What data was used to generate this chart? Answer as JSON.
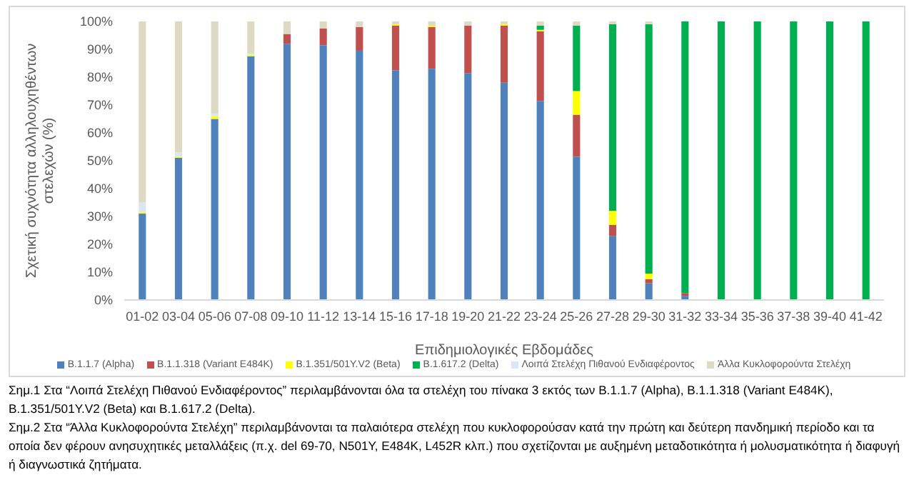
{
  "chart_data": {
    "type": "bar",
    "stacked": true,
    "xlabel": "Επιδημιολογικές Εβδομάδες",
    "ylabel": "Σχετική συχνότητα αλληλουχηθέντων στελεχών (%)",
    "categories": [
      "01-02",
      "03-04",
      "05-06",
      "07-08",
      "09-10",
      "11-12",
      "13-14",
      "15-16",
      "17-18",
      "19-20",
      "21-22",
      "23-24",
      "25-26",
      "27-28",
      "29-30",
      "31-32",
      "33-34",
      "35-36",
      "37-38",
      "39-40",
      "41-42"
    ],
    "series": [
      {
        "name": "B.1.1.7 (Alpha)",
        "color": "#4f81bd",
        "values": [
          31,
          51,
          65,
          87.5,
          92,
          91.5,
          89.5,
          82.5,
          83,
          81.5,
          78,
          71.5,
          51.5,
          23,
          6,
          1.5,
          0,
          0,
          0,
          0,
          0
        ]
      },
      {
        "name": "B.1.1.318 (Variant E484K)",
        "color": "#c0504d",
        "values": [
          0,
          0,
          0,
          0,
          3.5,
          6,
          8.5,
          16,
          15,
          17,
          20.5,
          25,
          15,
          4,
          1.5,
          1,
          0,
          0,
          0,
          0,
          0
        ]
      },
      {
        "name": "B.1.351/501Y.V2 (Beta)",
        "color": "#ffff00",
        "values": [
          0.5,
          0.5,
          1,
          0.5,
          0,
          0,
          0,
          0.5,
          0.5,
          0,
          0.5,
          0.5,
          8.5,
          5,
          2,
          0,
          0,
          0,
          0,
          0,
          0
        ]
      },
      {
        "name": "B.1.617.2 (Delta)",
        "color": "#00b050",
        "values": [
          0,
          0,
          0,
          0,
          0,
          0,
          0,
          0,
          0,
          0,
          0,
          1.5,
          23.5,
          67,
          89.5,
          97.5,
          100,
          100,
          100,
          100,
          100
        ]
      },
      {
        "name": "Λοιπά Στελέχη Πιθανού Ενδιαφέροντος",
        "color": "#dce6f2",
        "values": [
          3.5,
          1.5,
          1,
          0.5,
          0,
          0,
          null,
          0,
          0,
          0,
          0,
          0,
          0,
          0,
          0,
          0,
          0,
          0,
          0,
          0,
          0
        ]
      },
      {
        "name": "Άλλα Κυκλοφορούντα Στελέχη",
        "color": "#ddd9c3",
        "values": [
          65,
          47,
          33,
          11.5,
          4.5,
          2.5,
          2,
          1,
          1.5,
          1.5,
          1,
          1.5,
          1.5,
          1,
          1,
          0,
          0,
          0,
          0,
          0,
          0
        ]
      }
    ],
    "ylim": [
      0,
      100
    ],
    "yticks": [
      {
        "value": 0,
        "label": "0%"
      },
      {
        "value": 10,
        "label": "10%"
      },
      {
        "value": 20,
        "label": "20%"
      },
      {
        "value": 30,
        "label": "30%"
      },
      {
        "value": 40,
        "label": "40%"
      },
      {
        "value": 50,
        "label": "50%"
      },
      {
        "value": 60,
        "label": "60%"
      },
      {
        "value": 70,
        "label": "70%"
      },
      {
        "value": 80,
        "label": "80%"
      },
      {
        "value": 90,
        "label": "90%"
      },
      {
        "value": 100,
        "label": "100%"
      }
    ],
    "grid": false,
    "legend": "bottom",
    "annotations": [
      "Σημ.1 Στα “Λοιπά Στελέχη Πιθανού Ενδιαφέροντος” περιλαμβάνονται όλα τα στελέχη του πίνακα 3 εκτός των B.1.1.7 (Alpha), B.1.1.318 (Variant E484K), B.1.351/501Y.V2 (Beta) και B.1.617.2 (Delta).",
      "Σημ.2 Στα “Άλλα Κυκλοφορούντα Στελέχη” περιλαμβάνονται τα παλαιότερα στελέχη που κυκλοφορούσαν κατά την πρώτη και δεύτερη πανδημική περίοδο και τα οποία δεν φέρουν ανησυχητικές μεταλλάξεις (π.χ. del 69-70, N501Y, E484K, L452R κλπ.) που σχετίζονται με αυξημένη μεταδοτικότητα ή μολυσματικότητα ή διαφυγή ή διαγνωστικά ζητήματα."
    ]
  }
}
